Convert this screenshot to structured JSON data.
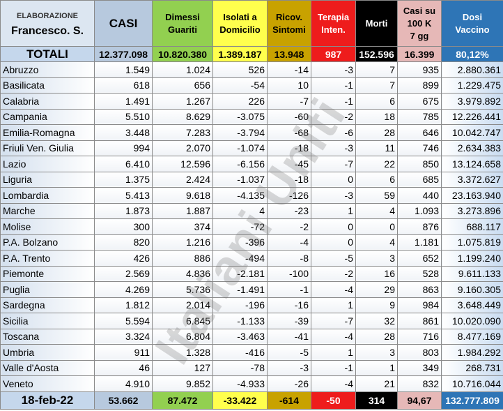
{
  "header": {
    "label": "ELABORAZIONE",
    "author": "Francesco. S.",
    "columns": [
      [
        "CASI"
      ],
      [
        "Dimessi",
        "Guariti"
      ],
      [
        "Isolati a",
        "Domicilio"
      ],
      [
        "Ricov.",
        "Sintomi"
      ],
      [
        "Terapia",
        "Inten."
      ],
      [
        "Morti"
      ],
      [
        "Casi su",
        "100 K",
        "7 gg"
      ],
      [
        "Dosi",
        "Vaccino"
      ]
    ]
  },
  "totals": {
    "label": "TOTALI",
    "cells": [
      "12.377.098",
      "10.820.380",
      "1.389.187",
      "13.948",
      "987",
      "152.596",
      "16.399",
      "80,12%"
    ]
  },
  "table": {
    "rows": [
      [
        "Abruzzo",
        "1.549",
        "1.024",
        "526",
        "-14",
        "-3",
        "7",
        "935",
        "2.880.361"
      ],
      [
        "Basilicata",
        "618",
        "656",
        "-54",
        "10",
        "-1",
        "7",
        "899",
        "1.229.475"
      ],
      [
        "Calabria",
        "1.491",
        "1.267",
        "226",
        "-7",
        "-1",
        "6",
        "675",
        "3.979.892"
      ],
      [
        "Campania",
        "5.510",
        "8.629",
        "-3.075",
        "-60",
        "-2",
        "18",
        "785",
        "12.226.441"
      ],
      [
        "Emilia-Romagna",
        "3.448",
        "7.283",
        "-3.794",
        "-68",
        "-6",
        "28",
        "646",
        "10.042.747"
      ],
      [
        "Friuli Ven. Giulia",
        "994",
        "2.070",
        "-1.074",
        "-18",
        "-3",
        "11",
        "746",
        "2.634.383"
      ],
      [
        "Lazio",
        "6.410",
        "12.596",
        "-6.156",
        "-45",
        "-7",
        "22",
        "850",
        "13.124.658"
      ],
      [
        "Liguria",
        "1.375",
        "2.424",
        "-1.037",
        "-18",
        "0",
        "6",
        "685",
        "3.372.627"
      ],
      [
        "Lombardia",
        "5.413",
        "9.618",
        "-4.135",
        "-126",
        "-3",
        "59",
        "440",
        "23.163.940"
      ],
      [
        "Marche",
        "1.873",
        "1.887",
        "4",
        "-23",
        "1",
        "4",
        "1.093",
        "3.273.896"
      ],
      [
        "Molise",
        "300",
        "374",
        "-72",
        "-2",
        "0",
        "0",
        "876",
        "688.117"
      ],
      [
        "P.A. Bolzano",
        "820",
        "1.216",
        "-396",
        "-4",
        "0",
        "4",
        "1.181",
        "1.075.819"
      ],
      [
        "P.A. Trento",
        "426",
        "886",
        "-494",
        "-8",
        "-5",
        "3",
        "652",
        "1.199.240"
      ],
      [
        "Piemonte",
        "2.569",
        "4.836",
        "-2.181",
        "-100",
        "-2",
        "16",
        "528",
        "9.611.133"
      ],
      [
        "Puglia",
        "4.269",
        "5.736",
        "-1.491",
        "-1",
        "-4",
        "29",
        "863",
        "9.160.305"
      ],
      [
        "Sardegna",
        "1.812",
        "2.014",
        "-196",
        "-16",
        "1",
        "9",
        "984",
        "3.648.449"
      ],
      [
        "Sicilia",
        "5.594",
        "6.845",
        "-1.133",
        "-39",
        "-7",
        "32",
        "861",
        "10.020.090"
      ],
      [
        "Toscana",
        "3.324",
        "6.804",
        "-3.463",
        "-41",
        "-4",
        "28",
        "716",
        "8.477.169"
      ],
      [
        "Umbria",
        "911",
        "1.328",
        "-416",
        "-5",
        "1",
        "3",
        "803",
        "1.984.292"
      ],
      [
        "Valle d'Aosta",
        "46",
        "127",
        "-78",
        "-3",
        "-1",
        "1",
        "349",
        "268.731"
      ],
      [
        "Veneto",
        "4.910",
        "9.852",
        "-4.933",
        "-26",
        "-4",
        "21",
        "832",
        "10.716.044"
      ]
    ]
  },
  "footer": {
    "date": "18-feb-22",
    "cells": [
      "53.662",
      "87.472",
      "-33.422",
      "-614",
      "-50",
      "314",
      "94,67",
      "132.777.809"
    ]
  },
  "watermark": "Italiani Uniti"
}
